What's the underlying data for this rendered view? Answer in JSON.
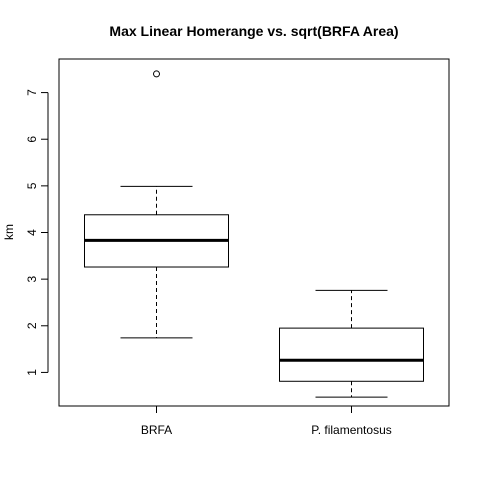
{
  "chart_data": {
    "type": "boxplot",
    "title": "Max Linear Homerange vs. sqrt(BRFA Area)",
    "xlabel": "",
    "ylabel": "km",
    "ylim": [
      0.28,
      7.72
    ],
    "y_ticks": [
      1,
      2,
      3,
      4,
      5,
      6,
      7
    ],
    "grid": false,
    "legend": "none",
    "categories": [
      "BRFA",
      "P. filamentosus"
    ],
    "series": [
      {
        "values": [
          {
            "whisker_low": 1.74,
            "q1": 3.26,
            "median": 3.83,
            "q3": 4.38,
            "whisker_high": 4.99,
            "outliers": [
              7.4
            ]
          },
          {
            "whisker_low": 0.47,
            "q1": 0.81,
            "median": 1.26,
            "q3": 1.95,
            "whisker_high": 2.76,
            "outliers": []
          }
        ]
      }
    ]
  }
}
